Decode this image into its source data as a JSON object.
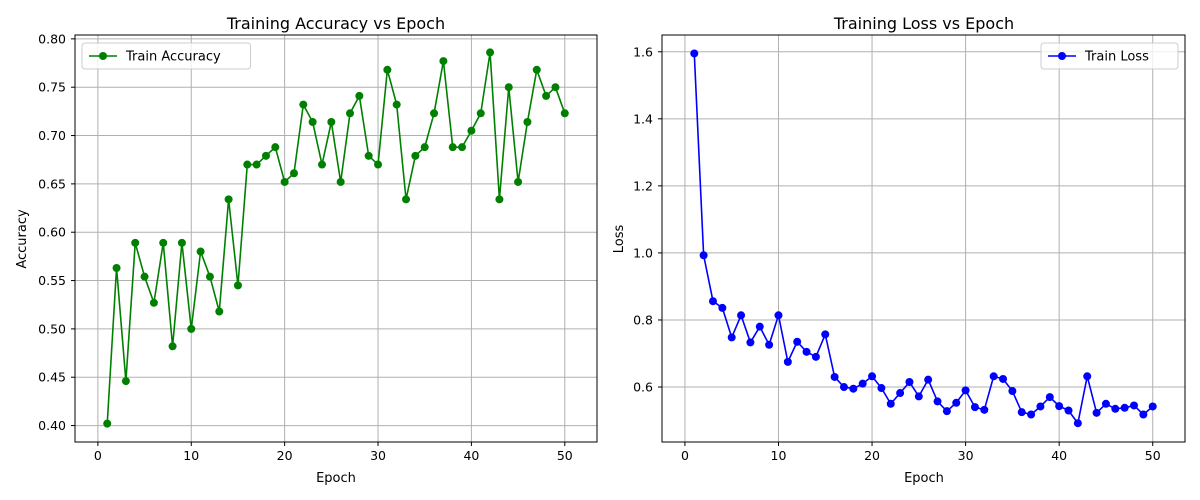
{
  "chart_data": [
    {
      "type": "line",
      "title": "Training Accuracy vs Epoch",
      "xlabel": "Epoch",
      "ylabel": "Accuracy",
      "xlim": [
        -2.45,
        53.45
      ],
      "ylim": [
        0.383,
        0.804
      ],
      "xticks": [
        0,
        10,
        20,
        30,
        40,
        50
      ],
      "yticks": [
        0.4,
        0.45,
        0.5,
        0.55,
        0.6,
        0.65,
        0.7,
        0.75,
        0.8
      ],
      "ytick_labels": [
        "0.40",
        "0.45",
        "0.50",
        "0.55",
        "0.60",
        "0.65",
        "0.70",
        "0.75",
        "0.80"
      ],
      "grid": true,
      "legend_position": "top-left",
      "series": [
        {
          "name": "Train Accuracy",
          "color": "#008000",
          "marker": "circle",
          "x": [
            1,
            2,
            3,
            4,
            5,
            6,
            7,
            8,
            9,
            10,
            11,
            12,
            13,
            14,
            15,
            16,
            17,
            18,
            19,
            20,
            21,
            22,
            23,
            24,
            25,
            26,
            27,
            28,
            29,
            30,
            31,
            32,
            33,
            34,
            35,
            36,
            37,
            38,
            39,
            40,
            41,
            42,
            43,
            44,
            45,
            46,
            47,
            48,
            49,
            50
          ],
          "values": [
            0.402,
            0.563,
            0.446,
            0.589,
            0.554,
            0.527,
            0.589,
            0.482,
            0.589,
            0.5,
            0.58,
            0.554,
            0.518,
            0.634,
            0.545,
            0.67,
            0.67,
            0.679,
            0.688,
            0.652,
            0.661,
            0.732,
            0.714,
            0.67,
            0.714,
            0.652,
            0.723,
            0.741,
            0.679,
            0.67,
            0.768,
            0.732,
            0.634,
            0.679,
            0.688,
            0.723,
            0.777,
            0.688,
            0.688,
            0.705,
            0.723,
            0.786,
            0.634,
            0.75,
            0.652,
            0.714,
            0.768,
            0.741,
            0.75,
            0.723
          ]
        }
      ]
    },
    {
      "type": "line",
      "title": "Training Loss vs Epoch",
      "xlabel": "Epoch",
      "ylabel": "Loss",
      "xlim": [
        -2.45,
        53.45
      ],
      "ylim": [
        0.436,
        1.65
      ],
      "xticks": [
        0,
        10,
        20,
        30,
        40,
        50
      ],
      "yticks": [
        0.6,
        0.8,
        1.0,
        1.2,
        1.4,
        1.6
      ],
      "ytick_labels": [
        "0.6",
        "0.8",
        "1.0",
        "1.2",
        "1.4",
        "1.6"
      ],
      "grid": true,
      "legend_position": "top-right",
      "series": [
        {
          "name": "Train Loss",
          "color": "#0000ff",
          "marker": "circle",
          "x": [
            1,
            2,
            3,
            4,
            5,
            6,
            7,
            8,
            9,
            10,
            11,
            12,
            13,
            14,
            15,
            16,
            17,
            18,
            19,
            20,
            21,
            22,
            23,
            24,
            25,
            26,
            27,
            28,
            29,
            30,
            31,
            32,
            33,
            34,
            35,
            36,
            37,
            38,
            39,
            40,
            41,
            42,
            43,
            44,
            45,
            46,
            47,
            48,
            49,
            50
          ],
          "values": [
            1.595,
            0.993,
            0.856,
            0.836,
            0.748,
            0.814,
            0.733,
            0.78,
            0.726,
            0.814,
            0.675,
            0.735,
            0.705,
            0.69,
            0.757,
            0.63,
            0.6,
            0.595,
            0.61,
            0.632,
            0.597,
            0.55,
            0.582,
            0.615,
            0.572,
            0.622,
            0.557,
            0.528,
            0.553,
            0.59,
            0.54,
            0.532,
            0.632,
            0.624,
            0.588,
            0.525,
            0.518,
            0.542,
            0.57,
            0.543,
            0.53,
            0.492,
            0.632,
            0.523,
            0.55,
            0.535,
            0.538,
            0.545,
            0.518,
            0.542
          ]
        }
      ]
    }
  ]
}
